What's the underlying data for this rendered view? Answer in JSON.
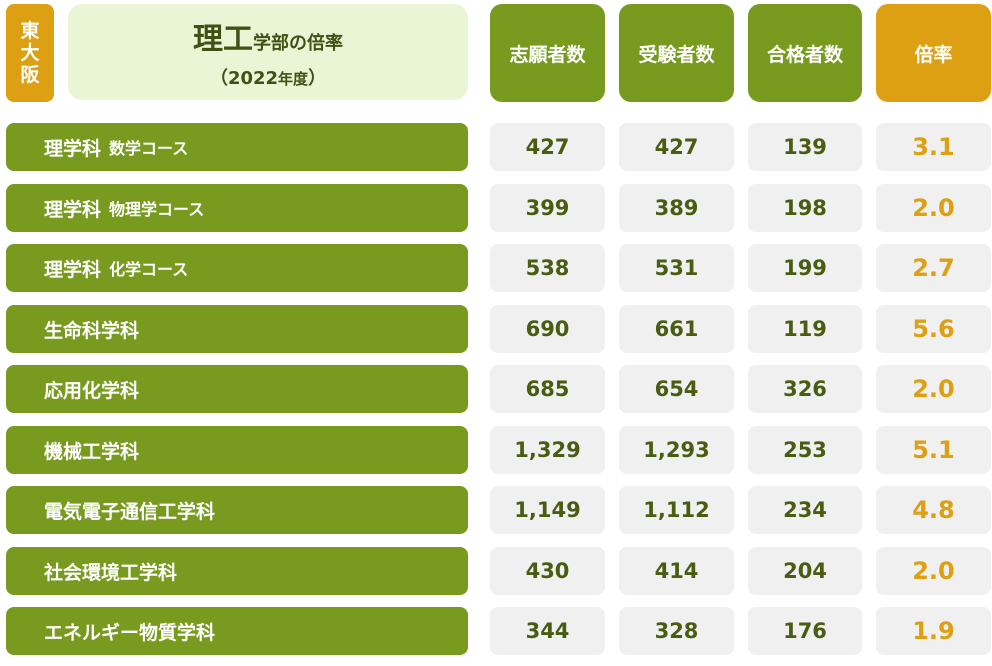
{
  "badge": {
    "line1": "東",
    "line2": "大",
    "line3": "阪"
  },
  "title": {
    "main": "理工",
    "sub": "学部の倍率",
    "year_open": "（",
    "year": "2022",
    "year_suffix": "年度",
    "year_close": "）"
  },
  "headers": {
    "applicants": "志願者数",
    "examinees": "受験者数",
    "passers": "合格者数",
    "ratio": "倍率"
  },
  "rows": [
    {
      "dept": "理学科",
      "course": "数学コース",
      "applicants": "427",
      "examinees": "427",
      "passers": "139",
      "ratio": "3.1"
    },
    {
      "dept": "理学科",
      "course": "物理学コース",
      "applicants": "399",
      "examinees": "389",
      "passers": "198",
      "ratio": "2.0"
    },
    {
      "dept": "理学科",
      "course": "化学コース",
      "applicants": "538",
      "examinees": "531",
      "passers": "199",
      "ratio": "2.7"
    },
    {
      "dept": "生命科学科",
      "course": "",
      "applicants": "690",
      "examinees": "661",
      "passers": "119",
      "ratio": "5.6"
    },
    {
      "dept": "応用化学科",
      "course": "",
      "applicants": "685",
      "examinees": "654",
      "passers": "326",
      "ratio": "2.0"
    },
    {
      "dept": "機械工学科",
      "course": "",
      "applicants": "1,329",
      "examinees": "1,293",
      "passers": "253",
      "ratio": "5.1"
    },
    {
      "dept": "電気電子通信工学科",
      "course": "",
      "applicants": "1,149",
      "examinees": "1,112",
      "passers": "234",
      "ratio": "4.8"
    },
    {
      "dept": "社会環境工学科",
      "course": "",
      "applicants": "430",
      "examinees": "414",
      "passers": "204",
      "ratio": "2.0"
    },
    {
      "dept": "エネルギー物質学科",
      "course": "",
      "applicants": "344",
      "examinees": "328",
      "passers": "176",
      "ratio": "1.9"
    }
  ],
  "colors": {
    "green": "#789a1f",
    "gold": "#dda012",
    "title_bg": "#eaf5d5",
    "cell_bg": "#f0f0f0",
    "number_text": "#4a5c12"
  }
}
